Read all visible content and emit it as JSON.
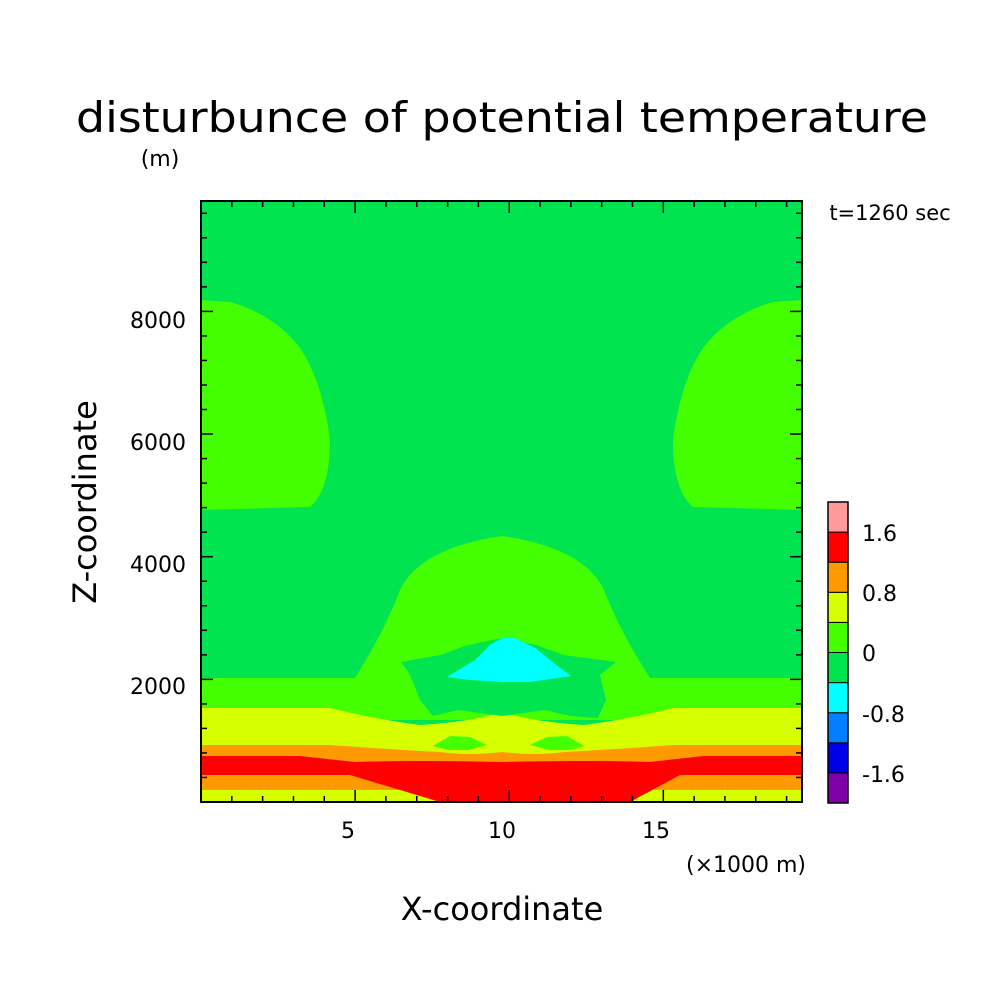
{
  "title": "disturbunce of potential temperature",
  "unit": "(m)",
  "time_label": "t=1260 sec",
  "chart_data": {
    "type": "heatmap",
    "title": "disturbunce of potential temperature",
    "subtitle": "(m)",
    "xlabel": "X-coordinate",
    "ylabel": "Z-coordinate",
    "x_unit_label": "(×1000 m)",
    "xlim": [
      0,
      19.5
    ],
    "ylim": [
      0,
      9800
    ],
    "x_ticks": [
      5,
      10,
      15
    ],
    "x_tick_labels": [
      "5",
      "10",
      "15"
    ],
    "y_ticks": [
      2000,
      4000,
      6000,
      8000
    ],
    "y_tick_labels": [
      "2000",
      "4000",
      "6000",
      "8000"
    ],
    "annotation": "t=1260 sec",
    "colorbar": {
      "levels": [
        -2.0,
        -1.6,
        -1.2,
        -0.8,
        -0.4,
        0,
        0.4,
        0.8,
        1.2,
        1.6,
        2.0
      ],
      "colors": [
        "#7f00a8",
        "#0000e6",
        "#0080ff",
        "#00ffff",
        "#00e44f",
        "#44ff00",
        "#d6ff00",
        "#ff9900",
        "#ff0000",
        "#ff9a9a"
      ],
      "tick_labels": [
        "1.6",
        "0.8",
        "0",
        "-0.8",
        "-1.6"
      ],
      "tick_values": [
        1.6,
        0.8,
        0,
        -0.8,
        -1.6
      ]
    },
    "regions": [
      {
        "value_range": [
          -0.4,
          0
        ],
        "color": "#00e44f",
        "description": "background"
      },
      {
        "value_range": [
          0,
          0.4
        ],
        "color": "#44ff00",
        "description": "upper side lobes and central dome"
      },
      {
        "value_range": [
          -0.8,
          -0.4
        ],
        "color": "#00ffff",
        "description": "cold cap near x=10, z≈2400"
      },
      {
        "value_range": [
          0.4,
          0.8
        ],
        "color": "#d6ff00",
        "description": "low-level warm layer"
      },
      {
        "value_range": [
          0.8,
          1.2
        ],
        "color": "#ff9900",
        "description": "near-surface layer"
      },
      {
        "value_range": [
          1.2,
          1.6
        ],
        "color": "#ff0000",
        "description": "near-surface maximum"
      }
    ],
    "grid": false
  }
}
